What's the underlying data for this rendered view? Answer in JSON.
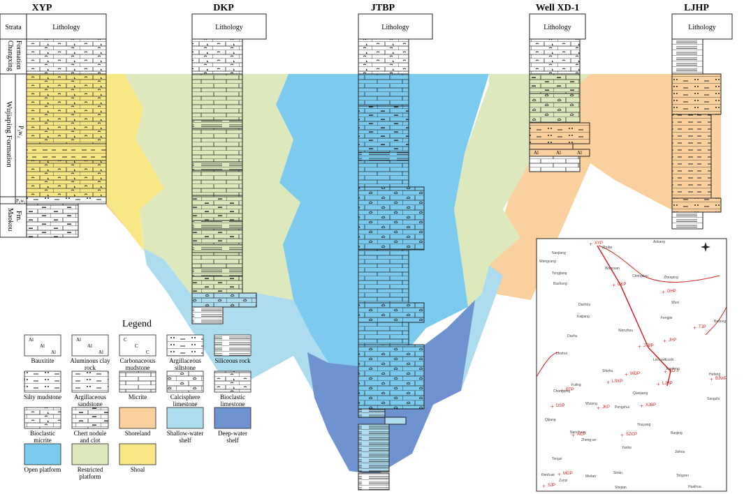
{
  "titles": {
    "xyp": "XYP",
    "dkp": "DKP",
    "jtbp": "JTBP",
    "xd1": "Well  XD-1",
    "ljhp": "LJHP"
  },
  "headers": {
    "strata": "Strata",
    "lithology": "Lithology"
  },
  "strata_labels": {
    "changxing": "Changxing\nFormation",
    "wujiaping": "Wujiaping Formation",
    "p3w2": "P₃w₂",
    "p3w1": "P₃w₁",
    "maokou": "Maokou\nFm."
  },
  "legend": {
    "title": "Legend",
    "items": [
      {
        "id": "bauxitite",
        "label": "Bauxitite"
      },
      {
        "id": "aluminous",
        "label": "Aluminous clay rock"
      },
      {
        "id": "carbonaceous",
        "label": "Carbonaceous mudstone"
      },
      {
        "id": "argsilt",
        "label": "Argillaceous siltstone"
      },
      {
        "id": "siliceous",
        "label": "Siliceous rock"
      },
      {
        "id": "siltymud",
        "label": "Silty mudstone"
      },
      {
        "id": "argsand",
        "label": "Argillaceous sandstone"
      },
      {
        "id": "micrite",
        "label": "Micrite"
      },
      {
        "id": "calci",
        "label": "Calcisphere limestone"
      },
      {
        "id": "bioclastic_ls",
        "label": "Bioclastic limestone"
      },
      {
        "id": "bioclastic_mic",
        "label": "Bioclastic micrite"
      },
      {
        "id": "chert",
        "label": "Chert nodule and clot limestone"
      },
      {
        "id": "shoreland",
        "label": "Shoreland",
        "color": "#f9d09e"
      },
      {
        "id": "shallow",
        "label": "Shallow-water shelf",
        "color": "#aedcef"
      },
      {
        "id": "deep",
        "label": "Deep-water shelf",
        "color": "#6e93d0"
      },
      {
        "id": "openplat",
        "label": "Open platform",
        "color": "#7ccbef"
      },
      {
        "id": "restricted",
        "label": "Restricted platform",
        "color": "#dde8bd"
      },
      {
        "id": "shoal",
        "label": "Shoal",
        "color": "#f8e885"
      }
    ]
  },
  "colors": {
    "shoreland": "#f9d09e",
    "shallow": "#aedcef",
    "deep": "#6e93d0",
    "open": "#7ccbef",
    "restricted": "#dde8bd",
    "shoal": "#f8e885",
    "route": "#d42020"
  },
  "map": {
    "places": [
      "Ankang",
      "Wangcang",
      "Nanjiang",
      "Zhuba",
      "Wanyuan",
      "Tongjiang",
      "Chengkou",
      "Zhenping",
      "Bazhong",
      "Dazhou",
      "Wuxi",
      "Kaijiang",
      "Fengjie",
      "Dazhu",
      "Wenzhou",
      "Badong",
      "Linshui",
      "Lichuan",
      "Enshi",
      "Shizhu",
      "Xianfeng",
      "Hefeng",
      "Fuling",
      "Qianjiang",
      "Chongqing",
      "Wulong",
      "Pengshui",
      "Sangzhi",
      "Qijiang",
      "Nanchuan",
      "Youyang",
      "Baojing",
      "Zheng-an",
      "Yanhe",
      "Jishou",
      "Tongzi",
      "Sinan",
      "Tongren",
      "Renhuai",
      "Meitan",
      "Zunyi",
      "Shiqian",
      "Huaihua"
    ],
    "sections": [
      "XYP",
      "DKP",
      "DHP",
      "TJP",
      "JHP",
      "JTBP",
      "XD-1",
      "LJHP",
      "WDP",
      "LSXP",
      "BJWP",
      "BTP",
      "DSP",
      "JKP",
      "XJBP",
      "ACP",
      "SZCP",
      "MGP",
      "SJP"
    ]
  }
}
